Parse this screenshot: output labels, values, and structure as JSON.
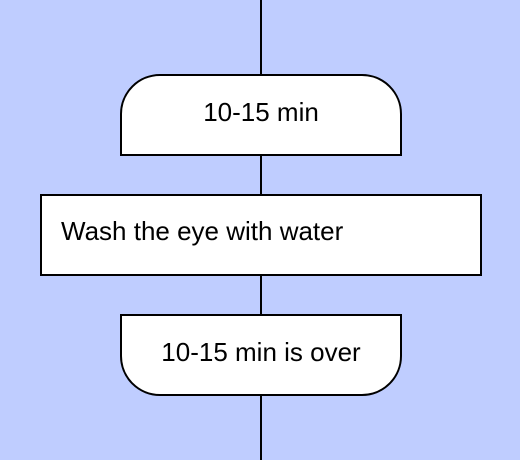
{
  "diagram": {
    "type": "flowchart",
    "background_color": "#bfcdff",
    "node_fill": "#ffffff",
    "stroke_color": "#000000",
    "loop_start": {
      "label": "10-15 min"
    },
    "action": {
      "label": "Wash the eye with water"
    },
    "loop_end": {
      "label": "10-15 min is over"
    }
  }
}
